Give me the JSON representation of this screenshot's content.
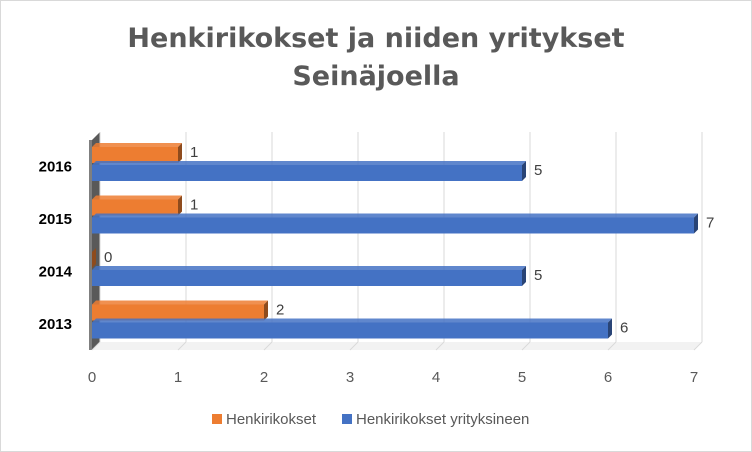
{
  "chart_data": {
    "type": "bar",
    "orientation": "horizontal",
    "title": "Henkirikokset ja niiden yritykset",
    "subtitle": "Seinäjoella",
    "categories": [
      "2013",
      "2014",
      "2015",
      "2016"
    ],
    "series": [
      {
        "name": "Henkirikokset",
        "values": [
          2,
          0,
          1,
          1
        ],
        "color": "#ED7D31"
      },
      {
        "name": "Henkirikokset yrityksineen",
        "values": [
          6,
          5,
          7,
          5
        ],
        "color": "#4472C4"
      }
    ],
    "xlim": [
      0,
      7
    ],
    "xticks": [
      "0",
      "1",
      "2",
      "3",
      "4",
      "5",
      "6",
      "7"
    ],
    "grid": true,
    "legend": "bottom",
    "data_labels": true
  }
}
